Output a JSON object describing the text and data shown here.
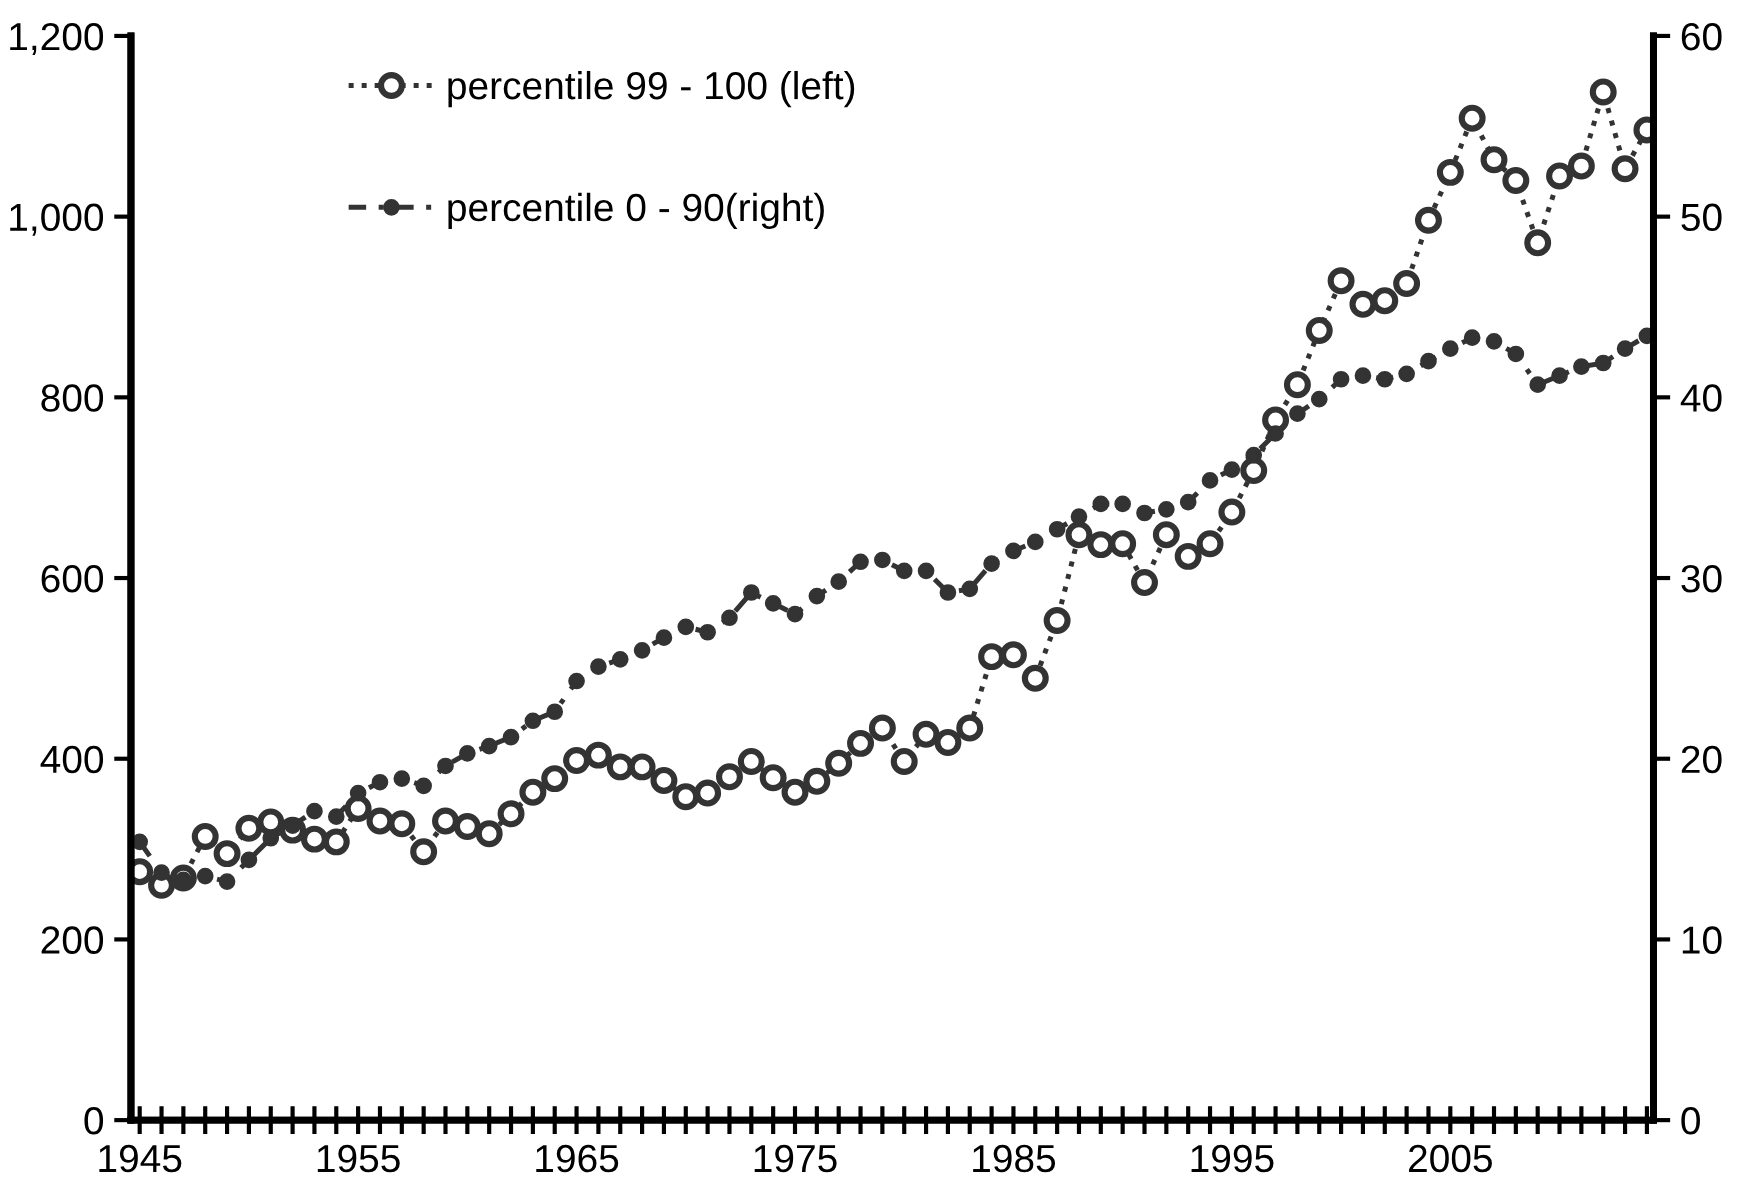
{
  "chart_data": {
    "type": "line",
    "x": [
      1945,
      1946,
      1947,
      1948,
      1949,
      1950,
      1951,
      1952,
      1953,
      1954,
      1955,
      1956,
      1957,
      1958,
      1959,
      1960,
      1961,
      1962,
      1963,
      1964,
      1965,
      1966,
      1967,
      1968,
      1969,
      1970,
      1971,
      1972,
      1973,
      1974,
      1975,
      1976,
      1977,
      1978,
      1979,
      1980,
      1981,
      1982,
      1983,
      1984,
      1985,
      1986,
      1987,
      1988,
      1989,
      1990,
      1991,
      1992,
      1993,
      1994,
      1995,
      1996,
      1997,
      1998,
      1999,
      2000,
      2001,
      2002,
      2003,
      2004,
      2005,
      2006,
      2007,
      2008,
      2009,
      2010,
      2011,
      2012,
      2013,
      2014
    ],
    "series": [
      {
        "name": "percentile 99 - 100 (left)",
        "color": "#333333",
        "marker": "circle",
        "line_style": "dotted",
        "values": [
          275,
          260,
          268,
          314,
          295,
          323,
          330,
          321,
          311,
          308,
          345,
          331,
          328,
          297,
          331,
          325,
          317,
          339,
          363,
          378,
          398,
          404,
          391,
          391,
          376,
          358,
          362,
          380,
          397,
          379,
          363,
          375,
          395,
          417,
          434,
          397,
          427,
          418,
          434,
          513,
          515,
          489,
          553,
          648,
          637,
          638,
          595,
          648,
          624,
          638,
          673,
          719,
          775,
          814,
          874,
          929,
          903,
          907,
          926,
          996,
          1049,
          1109,
          1063,
          1040,
          971,
          1045,
          1056,
          1138,
          1053,
          1096
        ]
      },
      {
        "name": "percentile 0 - 90(right)",
        "color": "#333333",
        "marker": "circle",
        "line_style": "dashed",
        "axis": "y2",
        "values": [
          15.4,
          13.7,
          13.3,
          13.5,
          13.2,
          14.4,
          15.6,
          16.3,
          17.1,
          16.8,
          18.1,
          18.7,
          18.9,
          18.5,
          19.6,
          20.3,
          20.7,
          21.2,
          22.1,
          22.6,
          24.3,
          25.1,
          25.5,
          26.0,
          26.7,
          27.3,
          27.0,
          27.8,
          29.2,
          28.6,
          28.0,
          29.0,
          29.8,
          30.9,
          31.0,
          30.4,
          30.4,
          29.2,
          29.4,
          30.8,
          31.5,
          32.0,
          32.7,
          33.4,
          34.1,
          34.1,
          33.6,
          33.8,
          34.2,
          35.4,
          36.0,
          36.8,
          38.0,
          39.1,
          39.9,
          41.0,
          41.2,
          41.0,
          41.3,
          42.0,
          42.7,
          43.3,
          43.1,
          42.4,
          40.7,
          41.2,
          41.7,
          41.9,
          42.7,
          43.4
        ]
      }
    ],
    "xlim": [
      1944.6,
      2014.3
    ],
    "xticks": [
      1945,
      {
        "value": 1946,
        "label": null
      },
      {
        "value": 1947,
        "label": null
      },
      {
        "value": 1948,
        "label": null
      },
      {
        "value": 1949,
        "label": null
      },
      {
        "value": 1950,
        "label": null
      },
      {
        "value": 1951,
        "label": null
      },
      {
        "value": 1952,
        "label": null
      },
      {
        "value": 1953,
        "label": null
      },
      {
        "value": 1954,
        "label": null
      },
      1955,
      {
        "value": 1956,
        "label": null
      },
      {
        "value": 1957,
        "label": null
      },
      {
        "value": 1958,
        "label": null
      },
      {
        "value": 1959,
        "label": null
      },
      {
        "value": 1960,
        "label": null
      },
      {
        "value": 1961,
        "label": null
      },
      {
        "value": 1962,
        "label": null
      },
      {
        "value": 1963,
        "label": null
      },
      {
        "value": 1964,
        "label": null
      },
      1965,
      {
        "value": 1966,
        "label": null
      },
      {
        "value": 1967,
        "label": null
      },
      {
        "value": 1968,
        "label": null
      },
      {
        "value": 1969,
        "label": null
      },
      {
        "value": 1970,
        "label": null
      },
      {
        "value": 1971,
        "label": null
      },
      {
        "value": 1972,
        "label": null
      },
      {
        "value": 1973,
        "label": null
      },
      {
        "value": 1974,
        "label": null
      },
      1975,
      {
        "value": 1976,
        "label": null
      },
      {
        "value": 1977,
        "label": null
      },
      {
        "value": 1978,
        "label": null
      },
      {
        "value": 1979,
        "label": null
      },
      {
        "value": 1980,
        "label": null
      },
      {
        "value": 1981,
        "label": null
      },
      {
        "value": 1982,
        "label": null
      },
      {
        "value": 1983,
        "label": null
      },
      {
        "value": 1984,
        "label": null
      },
      1985,
      {
        "value": 1986,
        "label": null
      },
      {
        "value": 1987,
        "label": null
      },
      {
        "value": 1988,
        "label": null
      },
      {
        "value": 1989,
        "label": null
      },
      {
        "value": 1990,
        "label": null
      },
      {
        "value": 1991,
        "label": null
      },
      {
        "value": 1992,
        "label": null
      },
      {
        "value": 1993,
        "label": null
      },
      {
        "value": 1994,
        "label": null
      },
      1995,
      {
        "value": 1996,
        "label": null
      },
      {
        "value": 1997,
        "label": null
      },
      {
        "value": 1998,
        "label": null
      },
      {
        "value": 1999,
        "label": null
      },
      {
        "value": 2000,
        "label": null
      },
      {
        "value": 2001,
        "label": null
      },
      {
        "value": 2002,
        "label": null
      },
      {
        "value": 2003,
        "label": null
      },
      {
        "value": 2004,
        "label": null
      },
      2005,
      {
        "value": 2006,
        "label": null
      },
      {
        "value": 2007,
        "label": null
      },
      {
        "value": 2008,
        "label": null
      },
      {
        "value": 2009,
        "label": null
      },
      {
        "value": 2010,
        "label": null
      },
      {
        "value": 2011,
        "label": null
      },
      {
        "value": 2012,
        "label": null
      },
      {
        "value": 2013,
        "label": null
      },
      {
        "value": 2014,
        "label": null
      }
    ],
    "ylim": [
      0,
      1200
    ],
    "yticks": [
      0,
      200,
      400,
      600,
      800,
      {
        "value": 1000,
        "label": "1,000"
      },
      {
        "value": 1200,
        "label": "1,200"
      }
    ],
    "y2lim": [
      0,
      60
    ],
    "y2ticks": [
      0,
      10,
      20,
      30,
      40,
      50,
      60
    ],
    "grid": false,
    "legend": "top left"
  }
}
